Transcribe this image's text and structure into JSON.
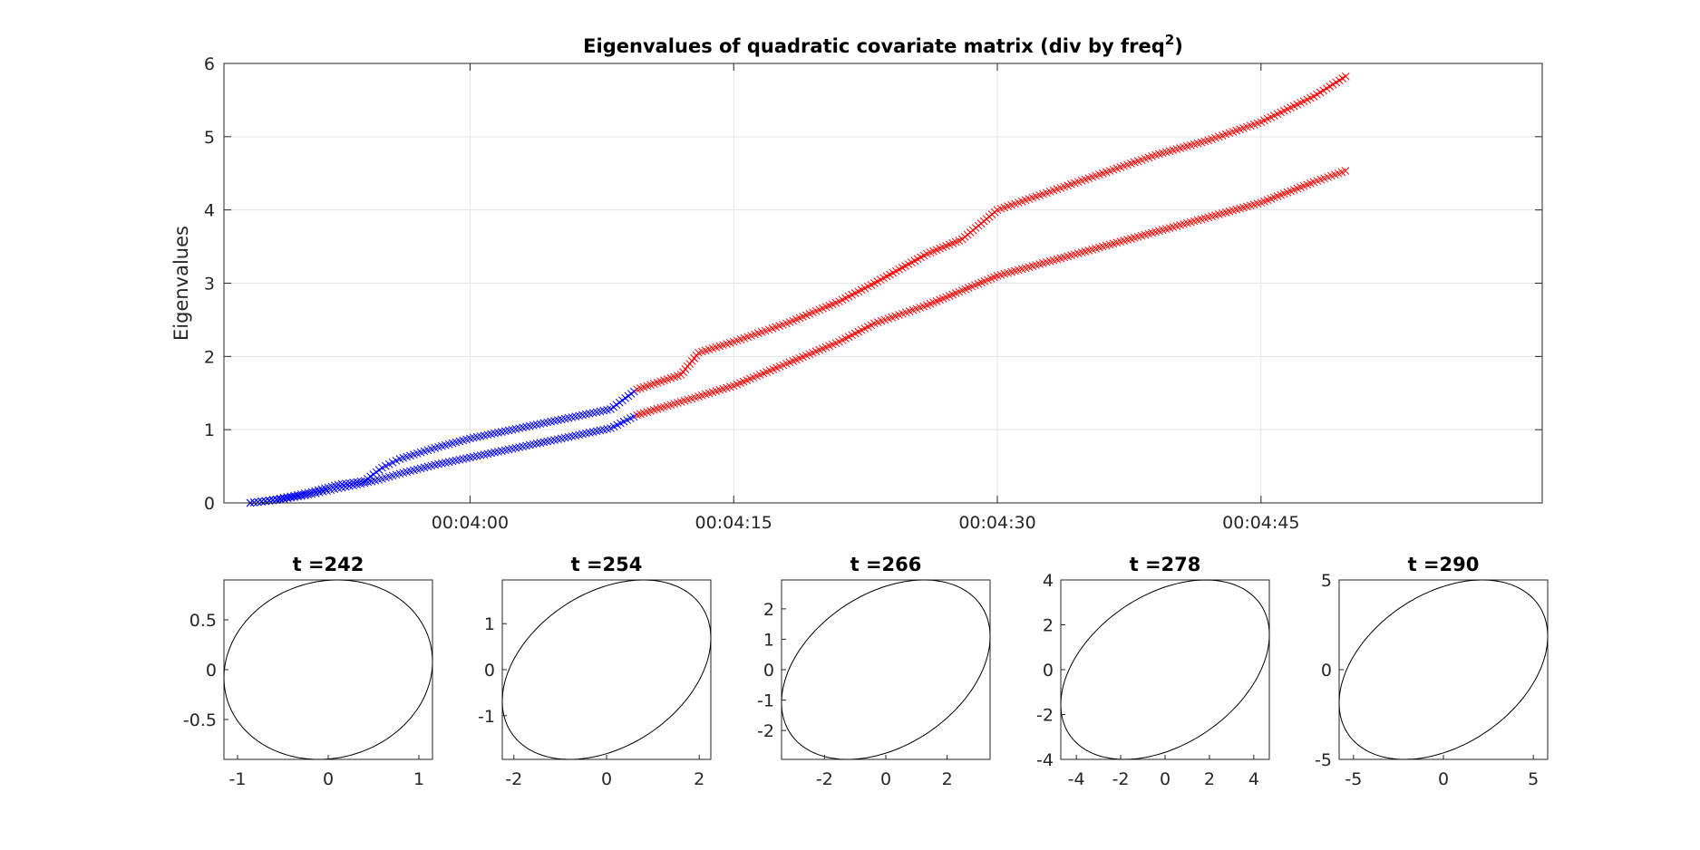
{
  "chart_data": [
    {
      "type": "scatter",
      "title": "Eigenvalues of quadratic covariate matrix (div by freq",
      "title_sup": "2",
      "title_end": ")",
      "ylabel": "Eigenvalues",
      "xlabel": "",
      "xlim": [
        226,
        301
      ],
      "ylim": [
        0,
        6
      ],
      "grid": true,
      "x_ticks": [
        {
          "value": 240,
          "label": "00:04:00"
        },
        {
          "value": 255,
          "label": "00:04:15"
        },
        {
          "value": 270,
          "label": "00:04:30"
        },
        {
          "value": 285,
          "label": "00:04:45"
        }
      ],
      "y_ticks": [
        "0",
        "1",
        "2",
        "3",
        "4",
        "5",
        "6"
      ],
      "marker": "x",
      "series": [
        {
          "color": "#0000ff",
          "x": [
            227.5,
            229,
            231,
            232.5,
            234,
            235,
            236,
            238,
            240,
            242,
            244,
            246,
            248,
            249.5
          ],
          "y": [
            0.0,
            0.05,
            0.15,
            0.25,
            0.3,
            0.48,
            0.6,
            0.75,
            0.88,
            0.98,
            1.08,
            1.18,
            1.28,
            1.55
          ]
        },
        {
          "color": "#0000ff",
          "x": [
            227.5,
            229,
            231,
            232.5,
            234,
            235,
            236,
            238,
            240,
            242,
            244,
            246,
            248,
            249.5
          ],
          "y": [
            0.0,
            0.04,
            0.12,
            0.2,
            0.27,
            0.33,
            0.4,
            0.52,
            0.62,
            0.72,
            0.82,
            0.92,
            1.02,
            1.2
          ]
        },
        {
          "color": "#ff0000",
          "x": [
            249.5,
            252,
            253,
            255,
            258,
            261,
            263,
            266,
            268,
            270,
            273,
            276,
            279,
            282,
            285,
            288,
            290
          ],
          "y": [
            1.55,
            1.75,
            2.05,
            2.2,
            2.45,
            2.75,
            3.0,
            3.4,
            3.6,
            4.0,
            4.25,
            4.5,
            4.75,
            4.95,
            5.2,
            5.55,
            5.85
          ]
        },
        {
          "color": "#ff0000",
          "x": [
            249.5,
            252,
            255,
            258,
            261,
            263,
            266,
            268,
            270,
            273,
            276,
            279,
            282,
            285,
            288,
            290
          ],
          "y": [
            1.2,
            1.38,
            1.6,
            1.9,
            2.2,
            2.45,
            2.7,
            2.9,
            3.1,
            3.3,
            3.5,
            3.7,
            3.9,
            4.1,
            4.38,
            4.55
          ]
        }
      ]
    },
    {
      "type": "line",
      "title": "t =242",
      "xlim": [
        -1.15,
        1.15
      ],
      "ylim": [
        -0.9,
        0.9
      ],
      "x_ticks": [
        -1,
        0,
        1
      ],
      "y_ticks": [
        -0.5,
        0,
        0.5
      ],
      "x_tick_labels": [
        "-1",
        "0",
        "1"
      ],
      "y_tick_labels": [
        "-0.5",
        "0",
        "0.5"
      ],
      "ellipse": {
        "a": 1.12,
        "b": 0.81,
        "angle_deg": 8
      }
    },
    {
      "type": "line",
      "title": "t =254",
      "xlim": [
        -2.25,
        2.25
      ],
      "ylim": [
        -1.95,
        1.95
      ],
      "x_ticks": [
        -2,
        0,
        2
      ],
      "y_ticks": [
        -1,
        0,
        1
      ],
      "x_tick_labels": [
        "-2",
        "0",
        "2"
      ],
      "y_tick_labels": [
        "-1",
        "0",
        "1"
      ],
      "ellipse": {
        "a": 2.25,
        "b": 1.55,
        "angle_deg": 40
      }
    },
    {
      "type": "line",
      "title": "t =266",
      "xlim": [
        -3.4,
        3.4
      ],
      "ylim": [
        -2.95,
        2.95
      ],
      "x_ticks": [
        -2,
        0,
        2
      ],
      "y_ticks": [
        -2,
        -1,
        0,
        1,
        2
      ],
      "x_tick_labels": [
        "-2",
        "0",
        "2"
      ],
      "y_tick_labels": [
        "-2",
        "-1",
        "0",
        "1",
        "2"
      ],
      "ellipse": {
        "a": 3.4,
        "b": 2.3,
        "angle_deg": 40
      }
    },
    {
      "type": "line",
      "title": "t =278",
      "xlim": [
        -4.7,
        4.7
      ],
      "ylim": [
        -4.0,
        4.0
      ],
      "x_ticks": [
        -4,
        -2,
        0,
        2,
        4
      ],
      "y_ticks": [
        -4,
        -2,
        0,
        2,
        4
      ],
      "x_tick_labels": [
        "-4",
        "-2",
        "0",
        "2",
        "4"
      ],
      "y_tick_labels": [
        "-4",
        "-2",
        "0",
        "2",
        "4"
      ],
      "ellipse": {
        "a": 4.7,
        "b": 3.1,
        "angle_deg": 40
      }
    },
    {
      "type": "line",
      "title": "t =290",
      "xlim": [
        -5.8,
        5.8
      ],
      "ylim": [
        -5.0,
        5.0
      ],
      "x_ticks": [
        -5,
        0,
        5
      ],
      "y_ticks": [
        -5,
        0,
        5
      ],
      "x_tick_labels": [
        "-5",
        "0",
        "5"
      ],
      "y_tick_labels": [
        "-5",
        "0",
        "5"
      ],
      "ellipse": {
        "a": 5.8,
        "b": 3.9,
        "angle_deg": 40
      }
    }
  ]
}
